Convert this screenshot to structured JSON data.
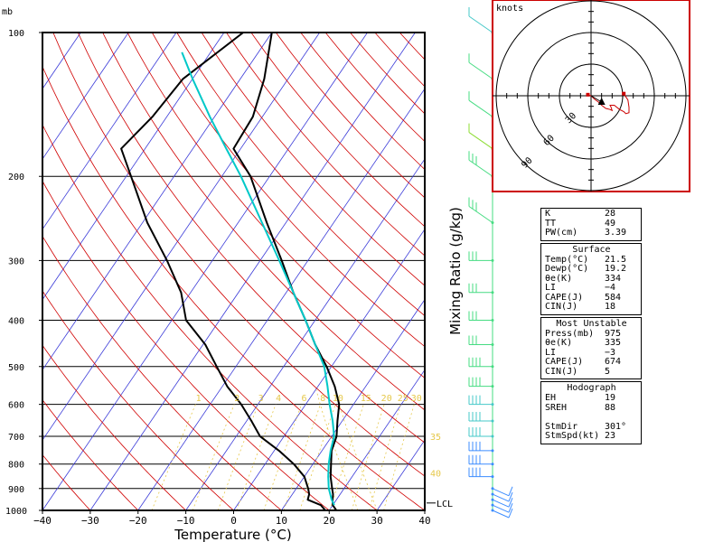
{
  "header": {
    "unit_mb": "mb",
    "hodo_units": "knots"
  },
  "chart_data": [
    {
      "type": "line",
      "subtype": "skew-t log-p",
      "xlabel": "Temperature (°C)",
      "ylabel": "",
      "x_ticks": [
        "−40",
        "−30",
        "−20",
        "−10",
        "0",
        "10",
        "20",
        "30",
        "40"
      ],
      "x_tick_values": [
        -40,
        -30,
        -20,
        -10,
        0,
        10,
        20,
        30,
        40
      ],
      "y_ticks": [
        "100",
        "200",
        "300",
        "400",
        "500",
        "600",
        "700",
        "800",
        "900",
        "1000"
      ],
      "y_tick_values": [
        100,
        200,
        300,
        400,
        500,
        600,
        700,
        800,
        900,
        1000
      ],
      "xlim": [
        -40,
        40
      ],
      "ylim": [
        1000,
        100
      ],
      "y_scale": "log",
      "skew_degC_per_decade": 68,
      "grid": true,
      "mixing_ratio_label": "Mixing Ratio (g/kg)",
      "mixing_ratio_values": [
        "1",
        "2",
        "3",
        "4",
        "6",
        "8",
        "10",
        "15",
        "20",
        "25",
        "30"
      ],
      "mixing_ratio_label_p": 580,
      "moist_adiabat_labels": [
        "35",
        "40"
      ],
      "lcl_label": "LCL",
      "lcl_pressure": 965,
      "series": [
        {
          "color": "#000000",
          "p": [
            1000,
            975,
            950,
            925,
            900,
            850,
            800,
            750,
            700,
            650,
            600,
            550,
            500,
            450,
            400,
            350,
            300,
            250,
            200,
            175,
            150,
            125,
            100
          ],
          "t": [
            21.5,
            20.0,
            19.2,
            18.5,
            17.5,
            15.5,
            13.8,
            12.0,
            11.0,
            9.0,
            7.0,
            3.5,
            -1.0,
            -6.5,
            -12.0,
            -18.5,
            -25.5,
            -34.0,
            -44.0,
            -51.5,
            -52.0,
            -55.0,
            -60.0
          ]
        },
        {
          "color": "#000000",
          "p": [
            1000,
            975,
            950,
            925,
            900,
            850,
            800,
            750,
            700,
            650,
            600,
            550,
            500,
            450,
            400,
            350,
            300,
            250,
            200,
            175,
            150,
            125,
            100
          ],
          "t": [
            19.2,
            17.5,
            14.0,
            13.5,
            12.5,
            10.0,
            6.0,
            1.0,
            -5.0,
            -9.0,
            -13.5,
            -19.0,
            -24.0,
            -29.5,
            -37.0,
            -42.0,
            -49.5,
            -59.0,
            -69.0,
            -75.0,
            -73.0,
            -72.0,
            -66.0
          ]
        },
        {
          "color": "#00c8c8",
          "p": [
            975,
            950,
            900,
            850,
            800,
            750,
            700,
            650,
            600,
            550,
            500,
            450,
            400,
            350,
            300,
            250,
            200,
            175,
            150,
            125,
            110
          ],
          "t": [
            20.3,
            19.0,
            16.8,
            15.0,
            13.3,
            11.8,
            10.5,
            8.0,
            5.0,
            2.0,
            -1.5,
            -6.5,
            -12.0,
            -18.5,
            -26.0,
            -35.0,
            -46.0,
            -53.0,
            -61.0,
            -70.0,
            -76.0
          ]
        }
      ],
      "wind_profile": {
        "description_points": [
          1000,
          975,
          950,
          925,
          900,
          850,
          800,
          750,
          700,
          650,
          600,
          550,
          500,
          450,
          400,
          350,
          300,
          250,
          200,
          175,
          150,
          125,
          100
        ],
        "colors": [
          "#3c8cff",
          "#3c8cff",
          "#3c8cff",
          "#3c8cff",
          "#3c8cff",
          "#3c8cff",
          "#3c8cff",
          "#3c8cff",
          "#46c8c8",
          "#46c8c8",
          "#46c8c8",
          "#46dc82",
          "#46dc82",
          "#46dc82",
          "#46dc82",
          "#46dc82",
          "#46dc82",
          "#46dc82",
          "#46dc82",
          "#8cdc32",
          "#46dc82",
          "#46dc82",
          "#46c8c8"
        ]
      }
    },
    {
      "type": "scatter",
      "subtype": "hodograph",
      "title": "knots",
      "ring_labels": [
        "30",
        "60",
        "90"
      ],
      "ring_values": [
        30,
        60,
        90
      ],
      "u": [
        -3,
        0,
        3,
        7,
        10,
        14,
        18,
        20,
        19,
        18,
        22,
        27,
        31,
        33,
        36,
        36,
        35,
        33,
        31
      ],
      "v": [
        1,
        0,
        -3,
        -6,
        -9,
        -12,
        -13,
        -14,
        -11,
        -9,
        -9,
        -13,
        -15,
        -17,
        -16,
        -11,
        -4,
        -1,
        2
      ],
      "storm_motion_u": 10,
      "storm_motion_v": -6,
      "colors": {
        "frame": "#cc0000",
        "trace": "#cc0000",
        "rings": "#000000"
      }
    }
  ],
  "indices": {
    "top": [
      {
        "label": "K",
        "value": "28"
      },
      {
        "label": "TT",
        "value": "49"
      },
      {
        "label": "PW(cm)",
        "value": "3.39"
      }
    ],
    "surface": {
      "header": "Surface",
      "rows": [
        {
          "label": "Temp(°C)",
          "value": "21.5"
        },
        {
          "label": "Dewp(°C)",
          "value": "19.2"
        },
        {
          "label": "θe(K)",
          "value": "334"
        },
        {
          "label": "LI",
          "value": "−4"
        },
        {
          "label": "CAPE(J)",
          "value": "584"
        },
        {
          "label": "CIN(J)",
          "value": "18"
        }
      ]
    },
    "most_unstable": {
      "header": "Most Unstable",
      "rows": [
        {
          "label": "Press(mb)",
          "value": "975"
        },
        {
          "label": "θe(K)",
          "value": "335"
        },
        {
          "label": "LI",
          "value": "−3"
        },
        {
          "label": "CAPE(J)",
          "value": "674"
        },
        {
          "label": "CIN(J)",
          "value": "5"
        }
      ]
    },
    "hodograph": {
      "header": "Hodograph",
      "rows": [
        {
          "label": "EH",
          "value": "19"
        },
        {
          "label": "SREH",
          "value": "88"
        },
        {
          "label": "",
          "value": ""
        },
        {
          "label": "StmDir",
          "value": "301°"
        },
        {
          "label": "StmSpd(kt)",
          "value": "23"
        }
      ]
    }
  }
}
